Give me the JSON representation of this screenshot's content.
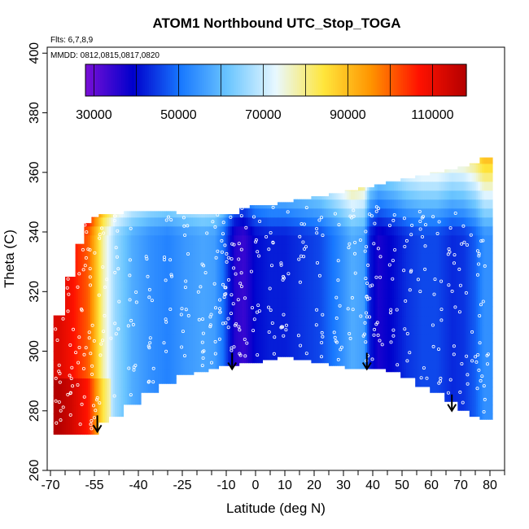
{
  "chart_data": {
    "type": "heatmap",
    "title": "ATOM1 Northbound UTC_Stop_TOGA",
    "annotations": [
      "Flts: 6,7,8,9",
      "MMDD: 0812,0815,0817,0820"
    ],
    "xlabel": "Latitude (deg N)",
    "ylabel": "Theta (C)",
    "xlim": [
      -70,
      85
    ],
    "ylim": [
      260,
      402
    ],
    "xticks_labeled": [
      -70,
      -55,
      -40,
      -25,
      -10,
      0,
      10,
      20,
      30,
      40,
      50,
      60,
      70,
      80
    ],
    "xticks_minor": [
      -65,
      -60,
      -50,
      -45,
      -35,
      -30,
      -20,
      -15,
      -5,
      5,
      15,
      25,
      35,
      45,
      55,
      65,
      75,
      85
    ],
    "yticks": [
      260,
      280,
      300,
      320,
      340,
      360,
      380,
      400
    ],
    "colorbar": {
      "range": [
        28000,
        118000
      ],
      "ticks": [
        30000,
        50000,
        70000,
        90000,
        110000
      ],
      "colors": [
        "#7a0fd6",
        "#0000cc",
        "#1878ff",
        "#6cc6ff",
        "#e8f8ff",
        "#ffe63c",
        "#ff9400",
        "#ff1200",
        "#b40000"
      ],
      "placement": "top, inside plot"
    },
    "value_field_description_columns": [
      {
        "lat": -67,
        "top": 312,
        "bottom": 272,
        "value": 112000
      },
      {
        "lat": -63,
        "top": 325,
        "bottom": 272,
        "value": 108000
      },
      {
        "lat": -60,
        "top": 336,
        "bottom": 272,
        "value": 104000
      },
      {
        "lat": -57,
        "top": 343,
        "bottom": 272,
        "value": 100000
      },
      {
        "lat": -55,
        "top": 345,
        "bottom": 272,
        "value": 92000
      },
      {
        "lat": -52,
        "top": 346,
        "bottom": 276,
        "value": 78000
      },
      {
        "lat": -48,
        "top": 346,
        "bottom": 278,
        "value": 66000
      },
      {
        "lat": -42,
        "top": 347,
        "bottom": 282,
        "value": 58000
      },
      {
        "lat": -36,
        "top": 347,
        "bottom": 286,
        "value": 54000
      },
      {
        "lat": -30,
        "top": 347,
        "bottom": 289,
        "value": 52000
      },
      {
        "lat": -24,
        "top": 346,
        "bottom": 292,
        "value": 55000
      },
      {
        "lat": -18,
        "top": 346,
        "bottom": 293,
        "value": 57000
      },
      {
        "lat": -14,
        "top": 346,
        "bottom": 294,
        "value": 56000
      },
      {
        "lat": -11,
        "top": 346,
        "bottom": 295,
        "value": 50000
      },
      {
        "lat": -9,
        "top": 346,
        "bottom": 295,
        "value": 42000
      },
      {
        "lat": -7,
        "top": 346,
        "bottom": 295,
        "value": 36000
      },
      {
        "lat": -4,
        "top": 348,
        "bottom": 296,
        "value": 34000
      },
      {
        "lat": 0,
        "top": 349,
        "bottom": 296,
        "value": 40000
      },
      {
        "lat": 5,
        "top": 349,
        "bottom": 297,
        "value": 42000
      },
      {
        "lat": 10,
        "top": 350,
        "bottom": 298,
        "value": 42000
      },
      {
        "lat": 16,
        "top": 351,
        "bottom": 297,
        "value": 44000
      },
      {
        "lat": 22,
        "top": 352,
        "bottom": 296,
        "value": 46000
      },
      {
        "lat": 28,
        "top": 353,
        "bottom": 295,
        "value": 52000
      },
      {
        "lat": 33,
        "top": 354,
        "bottom": 294,
        "value": 58000
      },
      {
        "lat": 37,
        "top": 355,
        "bottom": 294,
        "value": 56000
      },
      {
        "lat": 39,
        "top": 355,
        "bottom": 294,
        "value": 42000
      },
      {
        "lat": 42,
        "top": 356,
        "bottom": 294,
        "value": 37000
      },
      {
        "lat": 47,
        "top": 357,
        "bottom": 293,
        "value": 40000
      },
      {
        "lat": 52,
        "top": 358,
        "bottom": 291,
        "value": 44000
      },
      {
        "lat": 57,
        "top": 359,
        "bottom": 288,
        "value": 46000
      },
      {
        "lat": 62,
        "top": 360,
        "bottom": 286,
        "value": 46000
      },
      {
        "lat": 67,
        "top": 361,
        "bottom": 283,
        "value": 43000
      },
      {
        "lat": 71,
        "top": 362,
        "bottom": 280,
        "value": 44000
      },
      {
        "lat": 75,
        "top": 363,
        "bottom": 278,
        "value": 48000
      },
      {
        "lat": 78,
        "top": 365,
        "bottom": 277,
        "value": 54000
      }
    ],
    "profile_arrows": [
      {
        "lat": -54,
        "theta": 273
      },
      {
        "lat": -8,
        "theta": 294
      },
      {
        "lat": 38,
        "theta": 294
      },
      {
        "lat": 67,
        "theta": 280
      }
    ]
  }
}
